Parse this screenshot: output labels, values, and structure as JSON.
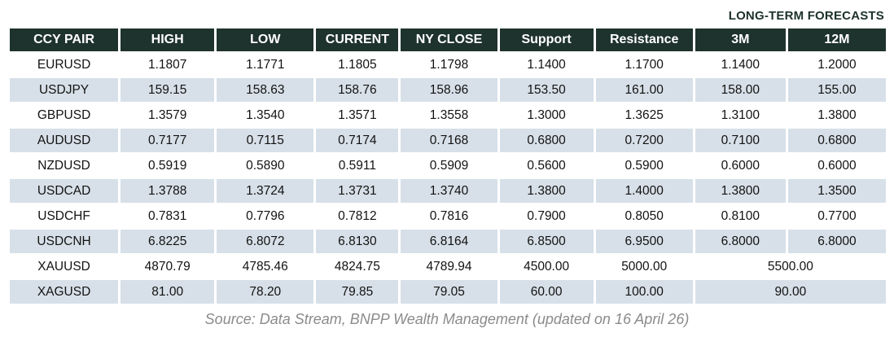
{
  "title": "LONG-TERM FORECASTS",
  "source": "Source: Data Stream, BNPP Wealth Management (updated on 16 April 26)",
  "colors": {
    "header_bg": "#1f332e",
    "row_shaded_bg": "#d7e0e8",
    "title_text": "#1c312b",
    "source_text": "#8b8b8b",
    "cell_text": "#121212"
  },
  "table": {
    "columns": [
      "CCY PAIR",
      "HIGH",
      "LOW",
      "CURRENT",
      "NY CLOSE",
      "Support",
      "Resistance",
      "3M",
      "12M"
    ],
    "rows": [
      {
        "pair": "EURUSD",
        "high": "1.1807",
        "low": "1.1771",
        "current": "1.1805",
        "ny_close": "1.1798",
        "support": "1.1400",
        "resistance": "1.1700",
        "m3": "1.1400",
        "m12": "1.2000"
      },
      {
        "pair": "USDJPY",
        "high": "159.15",
        "low": "158.63",
        "current": "158.76",
        "ny_close": "158.96",
        "support": "153.50",
        "resistance": "161.00",
        "m3": "158.00",
        "m12": "155.00"
      },
      {
        "pair": "GBPUSD",
        "high": "1.3579",
        "low": "1.3540",
        "current": "1.3571",
        "ny_close": "1.3558",
        "support": "1.3000",
        "resistance": "1.3625",
        "m3": "1.3100",
        "m12": "1.3800"
      },
      {
        "pair": "AUDUSD",
        "high": "0.7177",
        "low": "0.7115",
        "current": "0.7174",
        "ny_close": "0.7168",
        "support": "0.6800",
        "resistance": "0.7200",
        "m3": "0.7100",
        "m12": "0.6800"
      },
      {
        "pair": "NZDUSD",
        "high": "0.5919",
        "low": "0.5890",
        "current": "0.5911",
        "ny_close": "0.5909",
        "support": "0.5600",
        "resistance": "0.5900",
        "m3": "0.6000",
        "m12": "0.6000"
      },
      {
        "pair": "USDCAD",
        "high": "1.3788",
        "low": "1.3724",
        "current": "1.3731",
        "ny_close": "1.3740",
        "support": "1.3800",
        "resistance": "1.4000",
        "m3": "1.3800",
        "m12": "1.3500"
      },
      {
        "pair": "USDCHF",
        "high": "0.7831",
        "low": "0.7796",
        "current": "0.7812",
        "ny_close": "0.7816",
        "support": "0.7900",
        "resistance": "0.8050",
        "m3": "0.8100",
        "m12": "0.7700"
      },
      {
        "pair": "USDCNH",
        "high": "6.8225",
        "low": "6.8072",
        "current": "6.8130",
        "ny_close": "6.8164",
        "support": "6.8500",
        "resistance": "6.9500",
        "m3": "6.8000",
        "m12": "6.8000"
      },
      {
        "pair": "XAUUSD",
        "high": "4870.79",
        "low": "4785.46",
        "current": "4824.75",
        "ny_close": "4789.94",
        "support": "4500.00",
        "resistance": "5000.00",
        "forecast": "5500.00"
      },
      {
        "pair": "XAGUSD",
        "high": "81.00",
        "low": "78.20",
        "current": "79.85",
        "ny_close": "79.05",
        "support": "60.00",
        "resistance": "100.00",
        "forecast": "90.00"
      }
    ]
  },
  "chart_data": {
    "type": "table",
    "title": "LONG-TERM FORECASTS",
    "columns": [
      "CCY PAIR",
      "HIGH",
      "LOW",
      "CURRENT",
      "NY CLOSE",
      "Support",
      "Resistance",
      "3M",
      "12M"
    ],
    "rows": [
      [
        "EURUSD",
        "1.1807",
        "1.1771",
        "1.1805",
        "1.1798",
        "1.1400",
        "1.1700",
        "1.1400",
        "1.2000"
      ],
      [
        "USDJPY",
        "159.15",
        "158.63",
        "158.76",
        "158.96",
        "153.50",
        "161.00",
        "158.00",
        "155.00"
      ],
      [
        "GBPUSD",
        "1.3579",
        "1.3540",
        "1.3571",
        "1.3558",
        "1.3000",
        "1.3625",
        "1.3100",
        "1.3800"
      ],
      [
        "AUDUSD",
        "0.7177",
        "0.7115",
        "0.7174",
        "0.7168",
        "0.6800",
        "0.7200",
        "0.7100",
        "0.6800"
      ],
      [
        "NZDUSD",
        "0.5919",
        "0.5890",
        "0.5911",
        "0.5909",
        "0.5600",
        "0.5900",
        "0.6000",
        "0.6000"
      ],
      [
        "USDCAD",
        "1.3788",
        "1.3724",
        "1.3731",
        "1.3740",
        "1.3800",
        "1.4000",
        "1.3800",
        "1.3500"
      ],
      [
        "USDCHF",
        "0.7831",
        "0.7796",
        "0.7812",
        "0.7816",
        "0.7900",
        "0.8050",
        "0.8100",
        "0.7700"
      ],
      [
        "USDCNH",
        "6.8225",
        "6.8072",
        "6.8130",
        "6.8164",
        "6.8500",
        "6.9500",
        "6.8000",
        "6.8000"
      ],
      [
        "XAUUSD",
        "4870.79",
        "4785.46",
        "4824.75",
        "4789.94",
        "4500.00",
        "5000.00",
        "5500.00 (3M+12M merged)"
      ],
      [
        "XAGUSD",
        "81.00",
        "78.20",
        "79.85",
        "79.05",
        "60.00",
        "100.00",
        "90.00 (3M+12M merged)"
      ]
    ],
    "notes": "Alternating shaded rows; 3M and 12M forecast cells merged for XAUUSD and XAGUSD; source caption below table."
  }
}
